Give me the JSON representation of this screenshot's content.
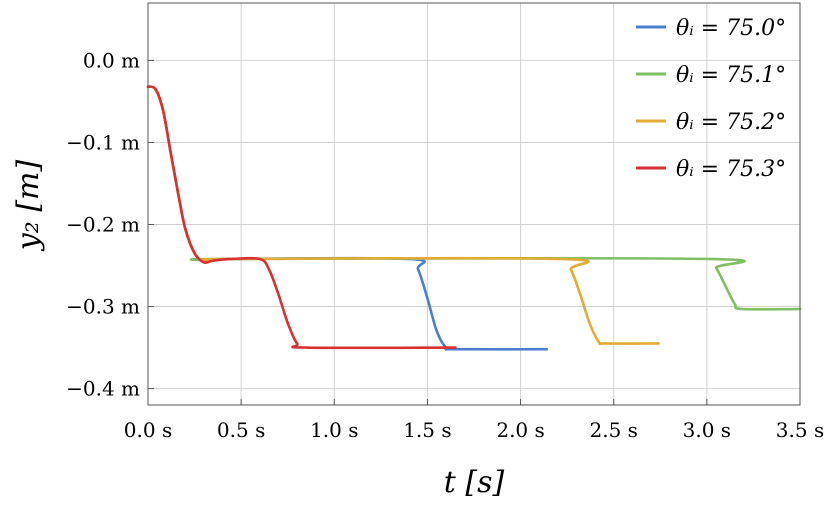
{
  "chart_data": {
    "type": "line",
    "xlabel": "t [s]",
    "ylabel": "y₂ [m]",
    "xlim": [
      0.0,
      3.5
    ],
    "ylim": [
      -0.42,
      0.07
    ],
    "grid": true,
    "legend_position": "top-right",
    "xticks": [
      {
        "value": 0.0,
        "label": "0.0 s"
      },
      {
        "value": 0.5,
        "label": "0.5 s"
      },
      {
        "value": 1.0,
        "label": "1.0 s"
      },
      {
        "value": 1.5,
        "label": "1.5 s"
      },
      {
        "value": 2.0,
        "label": "2.0 s"
      },
      {
        "value": 2.5,
        "label": "2.5 s"
      },
      {
        "value": 3.0,
        "label": "3.0 s"
      },
      {
        "value": 3.5,
        "label": "3.5 s"
      }
    ],
    "yticks": [
      {
        "value": 0.0,
        "label": "0.0 m"
      },
      {
        "value": -0.1,
        "label": "−0.1 m"
      },
      {
        "value": -0.2,
        "label": "−0.2 m"
      },
      {
        "value": -0.3,
        "label": "−0.3 m"
      },
      {
        "value": -0.4,
        "label": "−0.4 m"
      }
    ],
    "series": [
      {
        "name": "θᵢ = 75.0°",
        "color": "#4a7fcf",
        "points": [
          [
            0.0,
            -0.032
          ],
          [
            0.04,
            -0.035
          ],
          [
            0.08,
            -0.06
          ],
          [
            0.12,
            -0.11
          ],
          [
            0.16,
            -0.16
          ],
          [
            0.2,
            -0.205
          ],
          [
            0.25,
            -0.235
          ],
          [
            0.3,
            -0.246
          ],
          [
            0.35,
            -0.244
          ],
          [
            0.45,
            -0.242
          ],
          [
            1.4,
            -0.242
          ],
          [
            1.45,
            -0.255
          ],
          [
            1.5,
            -0.29
          ],
          [
            1.55,
            -0.33
          ],
          [
            1.6,
            -0.35
          ],
          [
            1.65,
            -0.352
          ],
          [
            2.14,
            -0.352
          ]
        ]
      },
      {
        "name": "θᵢ = 75.1°",
        "color": "#7fbf63",
        "points": [
          [
            0.0,
            -0.032
          ],
          [
            0.04,
            -0.035
          ],
          [
            0.08,
            -0.06
          ],
          [
            0.12,
            -0.11
          ],
          [
            0.16,
            -0.16
          ],
          [
            0.2,
            -0.205
          ],
          [
            0.25,
            -0.235
          ],
          [
            0.3,
            -0.246
          ],
          [
            0.35,
            -0.244
          ],
          [
            0.45,
            -0.242
          ],
          [
            3.0,
            -0.242
          ],
          [
            3.05,
            -0.253
          ],
          [
            3.1,
            -0.275
          ],
          [
            3.15,
            -0.297
          ],
          [
            3.19,
            -0.303
          ],
          [
            3.5,
            -0.303
          ]
        ]
      },
      {
        "name": "θᵢ = 75.2°",
        "color": "#e3ab35",
        "points": [
          [
            0.0,
            -0.032
          ],
          [
            0.04,
            -0.035
          ],
          [
            0.08,
            -0.06
          ],
          [
            0.12,
            -0.11
          ],
          [
            0.16,
            -0.16
          ],
          [
            0.2,
            -0.205
          ],
          [
            0.25,
            -0.235
          ],
          [
            0.3,
            -0.246
          ],
          [
            0.35,
            -0.244
          ],
          [
            0.45,
            -0.242
          ],
          [
            2.22,
            -0.242
          ],
          [
            2.27,
            -0.255
          ],
          [
            2.32,
            -0.285
          ],
          [
            2.37,
            -0.32
          ],
          [
            2.42,
            -0.343
          ],
          [
            2.46,
            -0.345
          ],
          [
            2.74,
            -0.345
          ]
        ]
      },
      {
        "name": "θᵢ = 75.3°",
        "color": "#d93131",
        "points": [
          [
            0.0,
            -0.032
          ],
          [
            0.04,
            -0.035
          ],
          [
            0.08,
            -0.06
          ],
          [
            0.12,
            -0.11
          ],
          [
            0.16,
            -0.16
          ],
          [
            0.2,
            -0.205
          ],
          [
            0.25,
            -0.235
          ],
          [
            0.3,
            -0.246
          ],
          [
            0.35,
            -0.244
          ],
          [
            0.45,
            -0.242
          ],
          [
            0.6,
            -0.242
          ],
          [
            0.65,
            -0.255
          ],
          [
            0.7,
            -0.285
          ],
          [
            0.75,
            -0.32
          ],
          [
            0.8,
            -0.345
          ],
          [
            0.85,
            -0.35
          ],
          [
            1.65,
            -0.35
          ]
        ]
      }
    ]
  }
}
